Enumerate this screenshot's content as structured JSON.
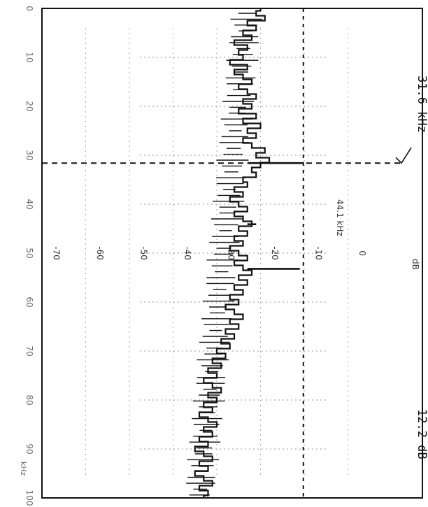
{
  "chart_data": {
    "type": "line",
    "title": "",
    "xlabel": "",
    "ylabel": "dB",
    "x_tick_labels": [
      "0",
      "10",
      "20",
      "30",
      "40",
      "50",
      "60",
      "70",
      "80",
      "90",
      "100"
    ],
    "x_unit_label": "kHz",
    "y_tick_labels": [
      "0",
      "-10",
      "-20",
      "-30",
      "-40",
      "-50",
      "-60",
      "-70"
    ],
    "y_unit_label": "dB",
    "xlim": [
      0,
      100
    ],
    "ylim": [
      -80,
      0
    ],
    "grid": true,
    "markers": {
      "frequency_label": "31.6 kHz",
      "frequency": 31.6,
      "level_label": "12.2 dB",
      "level": -12.2
    },
    "annotation": {
      "text": "44.1 kHz",
      "x": 44.1
    },
    "spikes": [
      {
        "x": 31.6,
        "y": -12.2
      },
      {
        "x": 44.1,
        "y": -23
      },
      {
        "x": 53.2,
        "y": -13
      }
    ],
    "series": [
      {
        "values": [
          [
            0,
            -30
          ],
          [
            1,
            -31
          ],
          [
            2,
            -29
          ],
          [
            3,
            -33
          ],
          [
            4,
            -31
          ],
          [
            5,
            -34
          ],
          [
            6,
            -32
          ],
          [
            7,
            -36
          ],
          [
            8,
            -33
          ],
          [
            9,
            -35
          ],
          [
            10,
            -34
          ],
          [
            11,
            -37
          ],
          [
            12,
            -33
          ],
          [
            13,
            -36
          ],
          [
            14,
            -34
          ],
          [
            15,
            -32
          ],
          [
            16,
            -35
          ],
          [
            17,
            -33
          ],
          [
            18,
            -31
          ],
          [
            19,
            -34
          ],
          [
            20,
            -32
          ],
          [
            21,
            -35
          ],
          [
            22,
            -31
          ],
          [
            23,
            -34
          ],
          [
            24,
            -30
          ],
          [
            25,
            -33
          ],
          [
            26,
            -31
          ],
          [
            27,
            -34
          ],
          [
            28,
            -32
          ],
          [
            29,
            -29
          ],
          [
            30,
            -31
          ],
          [
            31,
            -28
          ],
          [
            32,
            -30
          ],
          [
            33,
            -32
          ],
          [
            34,
            -31
          ],
          [
            35,
            -34
          ],
          [
            36,
            -33
          ],
          [
            37,
            -36
          ],
          [
            38,
            -34
          ],
          [
            39,
            -37
          ],
          [
            40,
            -35
          ],
          [
            41,
            -33
          ],
          [
            42,
            -36
          ],
          [
            43,
            -34
          ],
          [
            44,
            -32
          ],
          [
            45,
            -35
          ],
          [
            46,
            -33
          ],
          [
            47,
            -36
          ],
          [
            48,
            -34
          ],
          [
            49,
            -37
          ],
          [
            50,
            -35
          ],
          [
            51,
            -33
          ],
          [
            52,
            -36
          ],
          [
            53,
            -34
          ],
          [
            54,
            -32
          ],
          [
            55,
            -35
          ],
          [
            56,
            -33
          ],
          [
            57,
            -36
          ],
          [
            58,
            -34
          ],
          [
            59,
            -37
          ],
          [
            60,
            -35
          ],
          [
            61,
            -38
          ],
          [
            62,
            -36
          ],
          [
            63,
            -34
          ],
          [
            64,
            -37
          ],
          [
            65,
            -35
          ],
          [
            66,
            -38
          ],
          [
            67,
            -36
          ],
          [
            68,
            -39
          ],
          [
            69,
            -37
          ],
          [
            70,
            -40
          ],
          [
            71,
            -38
          ],
          [
            72,
            -41
          ],
          [
            73,
            -39
          ],
          [
            74,
            -42
          ],
          [
            75,
            -40
          ],
          [
            76,
            -43
          ],
          [
            77,
            -41
          ],
          [
            78,
            -39
          ],
          [
            79,
            -42
          ],
          [
            80,
            -40
          ],
          [
            81,
            -43
          ],
          [
            82,
            -41
          ],
          [
            83,
            -44
          ],
          [
            84,
            -42
          ],
          [
            85,
            -40
          ],
          [
            86,
            -43
          ],
          [
            87,
            -41
          ],
          [
            88,
            -44
          ],
          [
            89,
            -42
          ],
          [
            90,
            -45
          ],
          [
            91,
            -43
          ],
          [
            92,
            -41
          ],
          [
            93,
            -44
          ],
          [
            94,
            -42
          ],
          [
            95,
            -45
          ],
          [
            96,
            -43
          ],
          [
            97,
            -41
          ],
          [
            98,
            -44
          ],
          [
            99,
            -42
          ],
          [
            100,
            -43
          ]
        ]
      }
    ]
  }
}
